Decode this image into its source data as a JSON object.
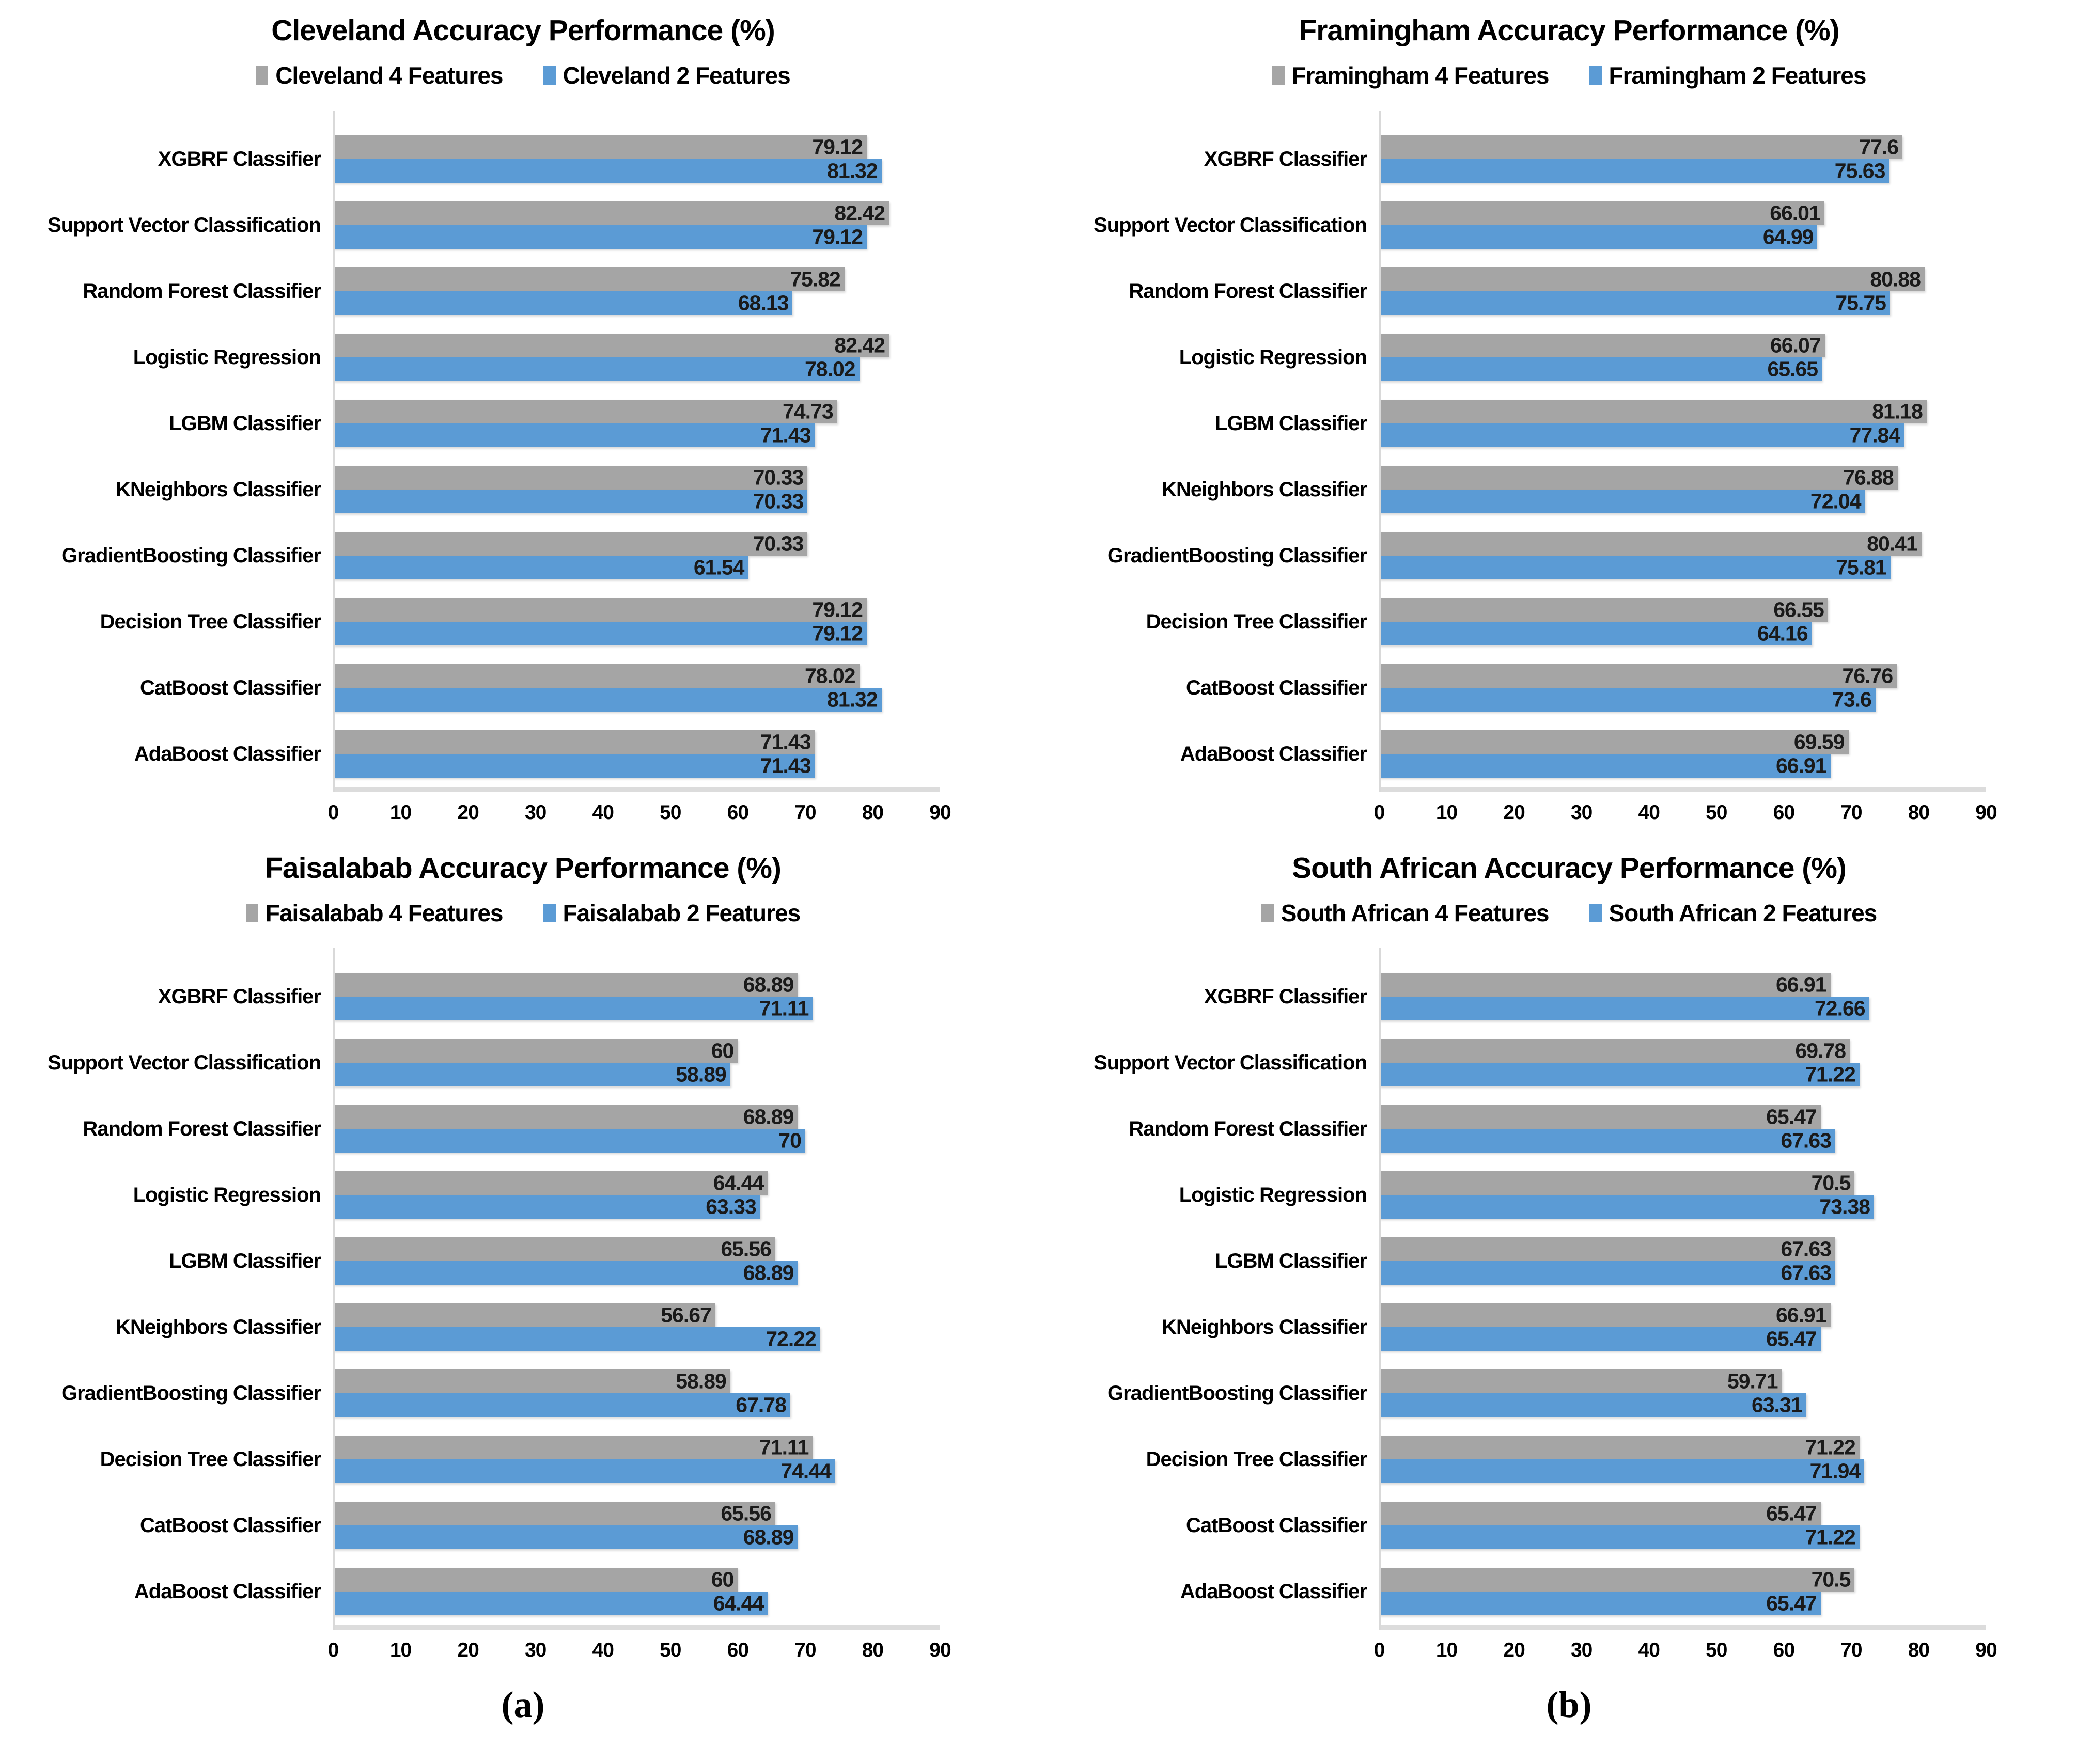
{
  "panel_labels": {
    "a": "(a)",
    "b": "(b)"
  },
  "colors": {
    "series_4_features": "#a5a5a5",
    "series_2_features": "#5b9bd5",
    "y_axis_line": "#d9d9d9",
    "x_axis_line": "#dcdcdc",
    "value_text": "#1a1a1a",
    "title_text": "#000000"
  },
  "chart_data": [
    {
      "id": "cleveland",
      "type": "bar",
      "orientation": "horizontal",
      "title": "Cleveland Accuracy Performance (%)",
      "categories": [
        "XGBRF Classifier",
        "Support Vector Classification",
        "Random Forest Classifier",
        "Logistic Regression",
        "LGBM Classifier",
        "KNeighbors Classifier",
        "GradientBoosting Classifier",
        "Decision Tree Classifier",
        "CatBoost Classifier",
        "AdaBoost Classifier"
      ],
      "series": [
        {
          "name": "Cleveland 4 Features",
          "color_key": "series_4_features",
          "values": [
            79.12,
            82.42,
            75.82,
            82.42,
            74.73,
            70.33,
            70.33,
            79.12,
            78.02,
            71.43
          ]
        },
        {
          "name": "Cleveland 2 Features",
          "color_key": "series_2_features",
          "values": [
            81.32,
            79.12,
            68.13,
            78.02,
            71.43,
            70.33,
            61.54,
            79.12,
            81.32,
            71.43
          ]
        }
      ],
      "xlim": [
        0,
        90
      ],
      "xticks": [
        0,
        10,
        20,
        30,
        40,
        50,
        60,
        70,
        80,
        90
      ],
      "legend_position": "top",
      "grid": false
    },
    {
      "id": "framingham",
      "type": "bar",
      "orientation": "horizontal",
      "title": "Framingham Accuracy Performance (%)",
      "categories": [
        "XGBRF Classifier",
        "Support Vector Classification",
        "Random Forest Classifier",
        "Logistic Regression",
        "LGBM Classifier",
        "KNeighbors Classifier",
        "GradientBoosting Classifier",
        "Decision Tree Classifier",
        "CatBoost Classifier",
        "AdaBoost Classifier"
      ],
      "series": [
        {
          "name": "Framingham 4 Features",
          "color_key": "series_4_features",
          "values": [
            77.6,
            66.01,
            80.88,
            66.07,
            81.18,
            76.88,
            80.41,
            66.55,
            76.76,
            69.59
          ]
        },
        {
          "name": "Framingham 2 Features",
          "color_key": "series_2_features",
          "values": [
            75.63,
            64.99,
            75.75,
            65.65,
            77.84,
            72.04,
            75.81,
            64.16,
            73.6,
            66.91
          ]
        }
      ],
      "xlim": [
        0,
        90
      ],
      "xticks": [
        0,
        10,
        20,
        30,
        40,
        50,
        60,
        70,
        80,
        90
      ],
      "legend_position": "top",
      "grid": false
    },
    {
      "id": "faisalabab",
      "type": "bar",
      "orientation": "horizontal",
      "title": "Faisalabab Accuracy Performance (%)",
      "categories": [
        "XGBRF Classifier",
        "Support Vector Classification",
        "Random Forest Classifier",
        "Logistic Regression",
        "LGBM Classifier",
        "KNeighbors Classifier",
        "GradientBoosting Classifier",
        "Decision Tree Classifier",
        "CatBoost Classifier",
        "AdaBoost Classifier"
      ],
      "series": [
        {
          "name": "Faisalabab 4 Features",
          "color_key": "series_4_features",
          "values": [
            68.89,
            60,
            68.89,
            64.44,
            65.56,
            56.67,
            58.89,
            71.11,
            65.56,
            60
          ]
        },
        {
          "name": "Faisalabab 2 Features",
          "color_key": "series_2_features",
          "values": [
            71.11,
            58.89,
            70,
            63.33,
            68.89,
            72.22,
            67.78,
            74.44,
            68.89,
            64.44
          ]
        }
      ],
      "xlim": [
        0,
        90
      ],
      "xticks": [
        0,
        10,
        20,
        30,
        40,
        50,
        60,
        70,
        80,
        90
      ],
      "legend_position": "top",
      "grid": false
    },
    {
      "id": "south-african",
      "type": "bar",
      "orientation": "horizontal",
      "title": "South African Accuracy Performance (%)",
      "categories": [
        "XGBRF Classifier",
        "Support Vector Classification",
        "Random Forest Classifier",
        "Logistic Regression",
        "LGBM Classifier",
        "KNeighbors Classifier",
        "GradientBoosting Classifier",
        "Decision Tree Classifier",
        "CatBoost Classifier",
        "AdaBoost Classifier"
      ],
      "series": [
        {
          "name": "South African 4 Features",
          "color_key": "series_4_features",
          "values": [
            66.91,
            69.78,
            65.47,
            70.5,
            67.63,
            66.91,
            59.71,
            71.22,
            65.47,
            70.5
          ]
        },
        {
          "name": "South African 2 Features",
          "color_key": "series_2_features",
          "values": [
            72.66,
            71.22,
            67.63,
            73.38,
            67.63,
            65.47,
            63.31,
            71.94,
            71.22,
            65.47
          ]
        }
      ],
      "xlim": [
        0,
        90
      ],
      "xticks": [
        0,
        10,
        20,
        30,
        40,
        50,
        60,
        70,
        80,
        90
      ],
      "legend_position": "top",
      "grid": false
    }
  ]
}
